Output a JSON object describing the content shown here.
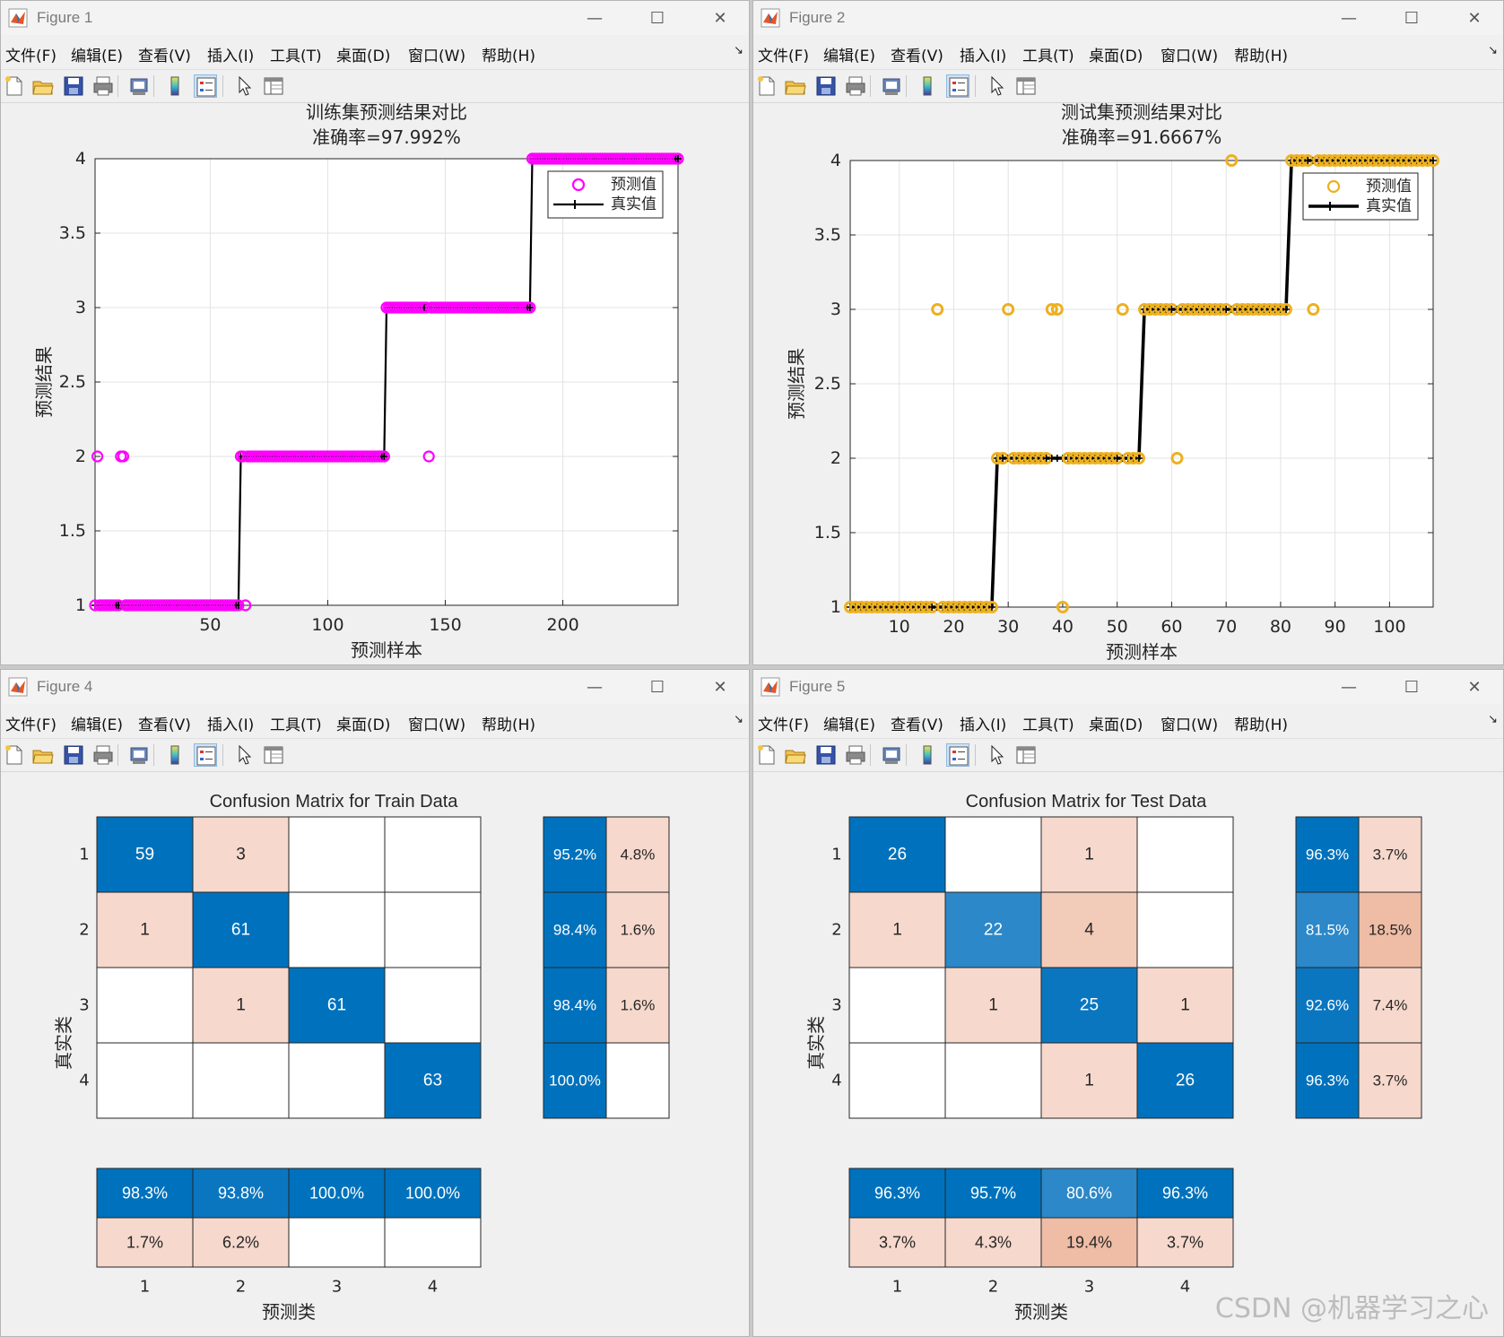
{
  "menu": [
    "文件(F)",
    "编辑(E)",
    "查看(V)",
    "插入(I)",
    "工具(T)",
    "桌面(D)",
    "窗口(W)",
    "帮助(H)"
  ],
  "toolbar_icons": [
    "new-file-icon",
    "open-folder-icon",
    "save-icon",
    "print-icon",
    "print-preview-icon",
    "colorbar-icon",
    "legend-icon",
    "pointer-icon",
    "property-editor-icon"
  ],
  "window_controls": {
    "minimize": "—",
    "maximize": "☐",
    "close": "✕"
  },
  "colors": {
    "magenta": "#ff00ff",
    "orange": "#edb120",
    "blue_dark": "#0072bd",
    "salmon": "#f5d7cb",
    "black": "#000000"
  },
  "windows": [
    {
      "title": "Figure 1",
      "chart_data": {
        "type": "scatter",
        "title": "训练集预测结果对比",
        "subtitle": "准确率=97.992%",
        "xlabel": "预测样本",
        "ylabel": "预测结果",
        "xlim": [
          1,
          249
        ],
        "ylim": [
          1,
          4
        ],
        "xticks": [
          50,
          100,
          150,
          200
        ],
        "yticks": [
          1,
          1.5,
          2,
          2.5,
          3,
          3.5,
          4
        ],
        "grid": true,
        "legend": {
          "placement": "top-right",
          "entries": [
            "预测值",
            "真实值"
          ]
        },
        "series": [
          {
            "name": "真实值",
            "style": "step-line",
            "color": "#000000",
            "segments": [
              {
                "x": [
                  1,
                  62
                ],
                "y": 1
              },
              {
                "x": [
                  63,
                  124
                ],
                "y": 2
              },
              {
                "x": [
                  125,
                  186
                ],
                "y": 3
              },
              {
                "x": [
                  187,
                  249
                ],
                "y": 4
              }
            ]
          },
          {
            "name": "预测值",
            "style": "circle",
            "color": "#ff00ff",
            "points_on_truth": true,
            "outliers": [
              {
                "x": 2,
                "y": 2
              },
              {
                "x": 12,
                "y": 2
              },
              {
                "x": 13,
                "y": 2
              },
              {
                "x": 65,
                "y": 1
              },
              {
                "x": 143,
                "y": 2
              }
            ]
          }
        ]
      }
    },
    {
      "title": "Figure 2",
      "chart_data": {
        "type": "scatter",
        "title": "测试集预测结果对比",
        "subtitle": "准确率=91.6667%",
        "xlabel": "预测样本",
        "ylabel": "预测结果",
        "xlim": [
          1,
          108
        ],
        "ylim": [
          1,
          4
        ],
        "xticks": [
          10,
          20,
          30,
          40,
          50,
          60,
          70,
          80,
          90,
          100
        ],
        "yticks": [
          1,
          1.5,
          2,
          2.5,
          3,
          3.5,
          4
        ],
        "grid": true,
        "legend": {
          "placement": "top-right",
          "entries": [
            "预测值",
            "真实值"
          ]
        },
        "series": [
          {
            "name": "真实值",
            "style": "step-line",
            "color": "#000000",
            "segments": [
              {
                "x": [
                  1,
                  27
                ],
                "y": 1
              },
              {
                "x": [
                  28,
                  54
                ],
                "y": 2
              },
              {
                "x": [
                  55,
                  81
                ],
                "y": 3
              },
              {
                "x": [
                  82,
                  108
                ],
                "y": 4
              }
            ]
          },
          {
            "name": "预测值",
            "style": "circle",
            "color": "#edb120",
            "points_on_truth": true,
            "outliers": [
              {
                "x": 17,
                "y": 3
              },
              {
                "x": 30,
                "y": 3
              },
              {
                "x": 38,
                "y": 3
              },
              {
                "x": 39,
                "y": 3
              },
              {
                "x": 40,
                "y": 1
              },
              {
                "x": 51,
                "y": 3
              },
              {
                "x": 61,
                "y": 2
              },
              {
                "x": 71,
                "y": 4
              },
              {
                "x": 86,
                "y": 3
              }
            ]
          }
        ]
      }
    },
    {
      "title": "Figure 4",
      "chart_data": {
        "type": "heatmap",
        "title": "Confusion Matrix for Train Data",
        "xlabel": "预测类",
        "ylabel": "真实类",
        "classes": [
          "1",
          "2",
          "3",
          "4"
        ],
        "matrix": [
          [
            59,
            3,
            0,
            0
          ],
          [
            1,
            61,
            0,
            0
          ],
          [
            0,
            1,
            61,
            0
          ],
          [
            0,
            0,
            0,
            63
          ]
        ],
        "row_summary": [
          [
            "95.2%",
            "4.8%"
          ],
          [
            "98.4%",
            "1.6%"
          ],
          [
            "98.4%",
            "1.6%"
          ],
          [
            "100.0%",
            ""
          ]
        ],
        "col_summary": [
          [
            "98.3%",
            "1.7%"
          ],
          [
            "93.8%",
            "6.2%"
          ],
          [
            "100.0%",
            ""
          ],
          [
            "100.0%",
            ""
          ]
        ]
      }
    },
    {
      "title": "Figure 5",
      "chart_data": {
        "type": "heatmap",
        "title": "Confusion Matrix for Test Data",
        "xlabel": "预测类",
        "ylabel": "真实类",
        "classes": [
          "1",
          "2",
          "3",
          "4"
        ],
        "matrix": [
          [
            26,
            0,
            1,
            0
          ],
          [
            1,
            22,
            4,
            0
          ],
          [
            0,
            1,
            25,
            1
          ],
          [
            0,
            0,
            1,
            26
          ]
        ],
        "row_summary": [
          [
            "96.3%",
            "3.7%"
          ],
          [
            "81.5%",
            "18.5%"
          ],
          [
            "92.6%",
            "7.4%"
          ],
          [
            "96.3%",
            "3.7%"
          ]
        ],
        "col_summary": [
          [
            "96.3%",
            "3.7%"
          ],
          [
            "95.7%",
            "4.3%"
          ],
          [
            "80.6%",
            "19.4%"
          ],
          [
            "96.3%",
            "3.7%"
          ]
        ]
      }
    }
  ],
  "watermark": "CSDN @机器学习之心"
}
